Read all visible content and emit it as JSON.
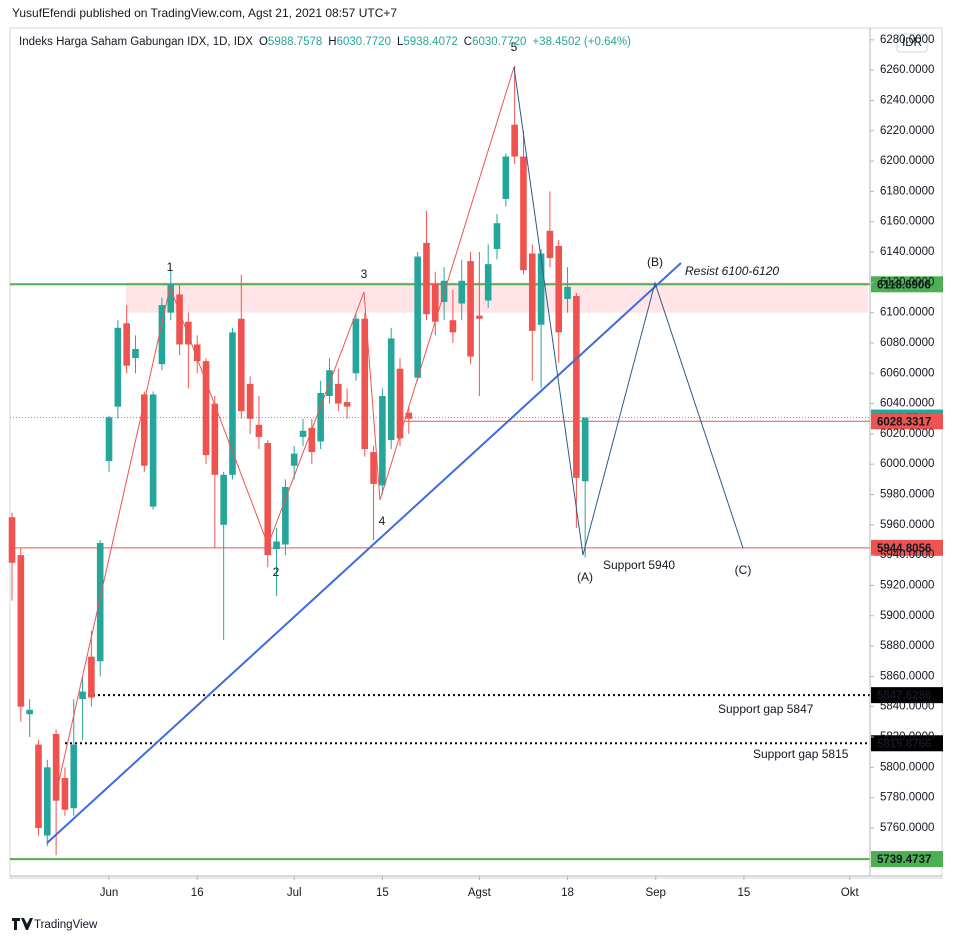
{
  "header": "YusufEfendi published on TradingView.com, Agst 21, 2021 08:57 UTC+7",
  "footer": "TradingView",
  "chart_data": {
    "type": "candlestick",
    "name": "Indeks Harga Saham Gabungan IDX, 1D, IDX",
    "ohlc_legend": [
      {
        "key": "O",
        "value": "5988.7578"
      },
      {
        "key": "H",
        "value": "6030.7720"
      },
      {
        "key": "L",
        "value": "5938.4072"
      },
      {
        "key": "C",
        "value": "6030.7720"
      }
    ],
    "change": "+38.4502 (+0.64%)",
    "currency": "IDR",
    "up_color": "#26a69a",
    "down_color": "#ef5350",
    "open": [
      5965,
      5940,
      5835,
      5815,
      5755,
      5822,
      5793,
      5773,
      5845,
      5873,
      5870,
      6002,
      6038,
      6093,
      6070,
      6046,
      5972,
      6066,
      6100,
      6112,
      6094,
      6079,
      6068,
      6040,
      5960,
      5993,
      6096,
      6053,
      6026,
      6014,
      5944,
      5947,
      5999,
      6018,
      6024,
      6015,
      6045,
      6053,
      6041,
      6060,
      6096,
      6008,
      5986,
      6016,
      6063,
      6034,
      6057,
      6146,
      6119,
      6107,
      6095,
      6106,
      6134,
      6098,
      6108,
      6142,
      6175,
      6224,
      6203,
      6139,
      6092,
      6154,
      6144,
      6109,
      6111,
      5988.7578
    ],
    "high": [
      5968,
      5945,
      5845,
      5818,
      5805,
      5825,
      5800,
      5845,
      5860,
      5890,
      5950,
      6032,
      6095,
      6105,
      6085,
      6048,
      6048,
      6110,
      6128,
      6118,
      6100,
      6085,
      6070,
      6045,
      5995,
      6090,
      6125,
      6058,
      6045,
      6016,
      5958,
      5990,
      6012,
      6030,
      6030,
      6055,
      6070,
      6063,
      6050,
      6100,
      6100,
      6012,
      6050,
      6090,
      6070,
      6038,
      6140,
      6167,
      6127,
      6130,
      6115,
      6135,
      6140,
      6140,
      6145,
      6165,
      6205,
      6263,
      6220,
      6145,
      6142,
      6180,
      6148,
      6130,
      6113,
      6030.772
    ],
    "low": [
      5910,
      5830,
      5820,
      5755,
      5748,
      5742,
      5768,
      5768,
      5818,
      5840,
      5860,
      5995,
      6030,
      6060,
      6060,
      5995,
      5970,
      6062,
      6095,
      6072,
      6050,
      6060,
      6000,
      5945,
      5884,
      5990,
      6030,
      6020,
      6010,
      5932,
      5913,
      5940,
      5990,
      6012,
      6000,
      6010,
      6040,
      6035,
      6030,
      6055,
      6005,
      5950,
      5980,
      6010,
      6012,
      6020,
      6055,
      6095,
      6085,
      6095,
      6080,
      6095,
      6066,
      6045,
      6103,
      6135,
      6170,
      6198,
      6125,
      6055,
      6050,
      6130,
      6067,
      6100,
      5958,
      5938.4072
    ],
    "close": [
      5935,
      5840,
      5838,
      5760,
      5800,
      5778,
      5772,
      5815,
      5850,
      5846,
      5948,
      6031,
      6090,
      6065,
      6076,
      5999,
      6046,
      6105,
      6119,
      6079,
      6079,
      6068,
      6006,
      5993,
      5993,
      6087,
      6035,
      6030,
      6018,
      5940,
      5949,
      5985,
      6007,
      6022,
      6008,
      6047,
      6062,
      6040,
      6038,
      6096,
      6010,
      5987,
      6045,
      6083,
      6017,
      6030,
      6137,
      6099,
      6094,
      6121,
      6087,
      6121,
      6071,
      6096,
      6132,
      6159,
      6203,
      6203,
      6128,
      6088,
      6139,
      6136,
      6087,
      6117,
      5991,
      6030.772
    ],
    "xlim": [
      -0.23,
      97.3
    ],
    "xticks": [
      {
        "value": 11,
        "label": "Jun"
      },
      {
        "value": 21,
        "label": "16"
      },
      {
        "value": 32,
        "label": "Jul"
      },
      {
        "value": 42,
        "label": "15"
      },
      {
        "value": 53,
        "label": "Agst"
      },
      {
        "value": 63,
        "label": "18"
      },
      {
        "value": 73,
        "label": "Sep"
      },
      {
        "value": 83,
        "label": "15"
      },
      {
        "value": 95,
        "label": "Okt"
      }
    ],
    "ylim": [
      5728.3,
      6287.8
    ],
    "yticks": [
      {
        "value": 5760,
        "label": "5760.0000"
      },
      {
        "value": 5780,
        "label": "5780.0000"
      },
      {
        "value": 5800,
        "label": "5800.0000"
      },
      {
        "value": 5820,
        "label": "5820.0000"
      },
      {
        "value": 5840,
        "label": "5840.0000"
      },
      {
        "value": 5860,
        "label": "5860.0000"
      },
      {
        "value": 5880,
        "label": "5880.0000"
      },
      {
        "value": 5900,
        "label": "5900.0000"
      },
      {
        "value": 5920,
        "label": "5920.0000"
      },
      {
        "value": 5940,
        "label": "5940.0000"
      },
      {
        "value": 5960,
        "label": "5960.0000"
      },
      {
        "value": 5980,
        "label": "5980.0000"
      },
      {
        "value": 6000,
        "label": "6000.0000"
      },
      {
        "value": 6020,
        "label": "6020.0000"
      },
      {
        "value": 6040,
        "label": "6040.0000"
      },
      {
        "value": 6060,
        "label": "6060.0000"
      },
      {
        "value": 6080,
        "label": "6080.0000"
      },
      {
        "value": 6100,
        "label": "6100.0000"
      },
      {
        "value": 6120,
        "label": "6120.0000"
      },
      {
        "value": 6140,
        "label": "6140.0000"
      },
      {
        "value": 6160,
        "label": "6160.0000"
      },
      {
        "value": 6180,
        "label": "6180.0000"
      },
      {
        "value": 6200,
        "label": "6200.0000"
      },
      {
        "value": 6220,
        "label": "6220.0000"
      },
      {
        "value": 6240,
        "label": "6240.0000"
      },
      {
        "value": 6260,
        "label": "6260.0000"
      },
      {
        "value": 6280,
        "label": "6280.0000"
      }
    ],
    "grid": false,
    "zone": [
      6100,
      6120
    ],
    "levels": [
      {
        "value": 6118.6906,
        "label": "6118.6906",
        "color": "#4caf50",
        "style": "solid"
      },
      {
        "value": 6030.772,
        "label": "6030.7720",
        "color": "#26a69a",
        "style": "dotted"
      },
      {
        "value": 6028.3317,
        "label": "6028.3317",
        "color": "#ef5350",
        "style": "solid"
      },
      {
        "value": 5944.8056,
        "label": "5944.8056",
        "color": "#ef5350",
        "style": "solid"
      },
      {
        "value": 5847.6286,
        "label": "5847.6286",
        "color": "#000000",
        "style": "dots"
      },
      {
        "value": 5815.8766,
        "label": "5815.8766",
        "color": "#000000",
        "style": "dots"
      },
      {
        "value": 5739.4737,
        "label": "5739.4737",
        "color": "#4caf50",
        "style": "solid"
      }
    ],
    "annotations": [
      "1",
      "2",
      "3",
      "4",
      "5",
      "(A)",
      "(B)",
      "(C)",
      "Resist 6100-6120",
      "Support 5940",
      "Support gap 5847",
      "Support gap 5815"
    ]
  }
}
